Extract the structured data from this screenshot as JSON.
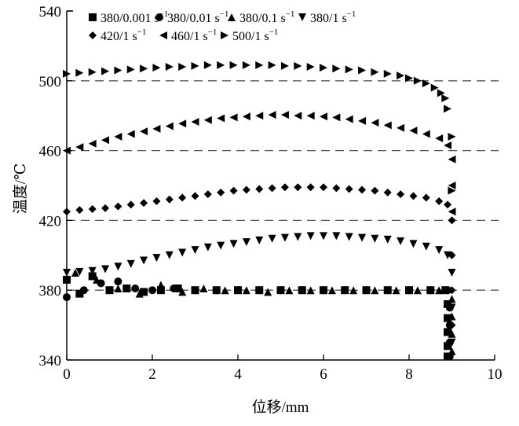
{
  "chart_data": {
    "type": "scatter",
    "title": "",
    "xlabel": "位移/mm",
    "ylabel": "温度/℃",
    "xlim": [
      0,
      10
    ],
    "ylim": [
      340,
      540
    ],
    "xticks": [
      "0",
      "2",
      "4",
      "6",
      "8",
      "10"
    ],
    "yticks": [
      "340",
      "380",
      "420",
      "460",
      "500",
      "540"
    ],
    "grid": "dashed horizontal at 380, 420, 460, 500",
    "legend_placement": "top-left inside",
    "series": [
      {
        "name": "380/0.001 s",
        "sup": "−1",
        "marker": "square",
        "x": [
          0,
          0.3,
          0.6,
          1.0,
          1.4,
          1.8,
          2.2,
          2.6,
          3.0,
          3.5,
          4.0,
          4.5,
          5.0,
          5.5,
          6.0,
          6.5,
          7.0,
          7.5,
          8.0,
          8.5,
          8.85,
          8.9,
          8.9,
          8.9,
          8.9,
          8.9
        ],
        "y": [
          386,
          378,
          388,
          380,
          381,
          379,
          380,
          381,
          380,
          380,
          380,
          380,
          380,
          380,
          380,
          380,
          380,
          380,
          380,
          380,
          380,
          372,
          364,
          356,
          348,
          342
        ]
      },
      {
        "name": "380/0.01 s",
        "sup": "−1",
        "marker": "circle",
        "x": [
          0,
          0.4,
          0.8,
          1.2,
          1.6,
          2.0,
          2.5,
          3.0,
          3.5,
          4.0,
          4.5,
          5.0,
          5.5,
          6.0,
          6.5,
          7.0,
          7.5,
          8.0,
          8.5,
          8.9,
          8.95,
          8.95,
          8.95,
          8.95
        ],
        "y": [
          376,
          380,
          384,
          385,
          381,
          380,
          381,
          380,
          380,
          380,
          380,
          380,
          380,
          380,
          380,
          380,
          380,
          380,
          380,
          380,
          370,
          360,
          350,
          342
        ]
      },
      {
        "name": "380/0.1 s",
        "sup": "−1",
        "marker": "triangle-up",
        "x": [
          0.2,
          0.7,
          1.2,
          1.7,
          2.2,
          2.7,
          3.2,
          3.7,
          4.2,
          4.7,
          5.2,
          5.7,
          6.2,
          6.7,
          7.2,
          7.7,
          8.2,
          8.7,
          9.0,
          9.0,
          9.0,
          9.0
        ],
        "y": [
          390,
          386,
          381,
          378,
          383,
          379,
          381,
          380,
          380,
          379,
          380,
          380,
          380,
          380,
          380,
          380,
          380,
          380,
          375,
          365,
          355,
          345
        ]
      },
      {
        "name": "380/1 s",
        "sup": "−1",
        "marker": "triangle-down",
        "x": [
          0,
          0.3,
          0.6,
          0.9,
          1.2,
          1.5,
          1.8,
          2.1,
          2.4,
          2.7,
          3.0,
          3.3,
          3.6,
          3.9,
          4.2,
          4.5,
          4.8,
          5.1,
          5.4,
          5.7,
          6.0,
          6.3,
          6.6,
          6.9,
          7.2,
          7.5,
          7.8,
          8.1,
          8.4,
          8.7,
          8.9,
          9.0,
          9.0,
          9.0
        ],
        "y": [
          390,
          390.5,
          391,
          392,
          393.5,
          395,
          397,
          398.5,
          400,
          401.5,
          403,
          404.5,
          405.5,
          406.5,
          407.5,
          408.5,
          409.5,
          410,
          410.5,
          411,
          411,
          411,
          410.5,
          410,
          409.5,
          409,
          408,
          406.5,
          405,
          403,
          400,
          390,
          370,
          350
        ]
      },
      {
        "name": "420/1 s",
        "sup": "−1",
        "marker": "diamond",
        "x": [
          0,
          0.3,
          0.6,
          0.9,
          1.2,
          1.5,
          1.8,
          2.1,
          2.4,
          2.7,
          3.0,
          3.3,
          3.6,
          3.9,
          4.2,
          4.5,
          4.8,
          5.1,
          5.4,
          5.7,
          6.0,
          6.3,
          6.6,
          6.9,
          7.2,
          7.5,
          7.8,
          8.1,
          8.4,
          8.7,
          8.9,
          9.0,
          9.0,
          9.0,
          9.0
        ],
        "y": [
          425,
          426,
          426.5,
          427,
          428,
          429,
          430,
          431,
          432,
          433,
          434,
          435,
          436,
          437,
          437.5,
          438,
          438.5,
          439,
          439,
          439,
          439,
          438.5,
          438,
          437.5,
          437,
          436,
          435,
          434,
          433,
          431,
          429,
          420,
          400,
          380,
          360
        ]
      },
      {
        "name": "460/1 s",
        "sup": "−1",
        "marker": "triangle-left",
        "x": [
          0,
          0.3,
          0.6,
          0.9,
          1.2,
          1.5,
          1.8,
          2.1,
          2.4,
          2.7,
          3.0,
          3.3,
          3.6,
          3.9,
          4.2,
          4.5,
          4.8,
          5.1,
          5.4,
          5.7,
          6.0,
          6.3,
          6.6,
          6.9,
          7.2,
          7.5,
          7.8,
          8.1,
          8.4,
          8.7,
          8.9,
          9.0,
          9.0,
          9.0
        ],
        "y": [
          460,
          462,
          464,
          466,
          468,
          469.5,
          471,
          472.5,
          474,
          475.5,
          476.5,
          477.5,
          478.5,
          479,
          479.5,
          480,
          480.5,
          480.5,
          480,
          480,
          479.5,
          479,
          478,
          477,
          476,
          474.5,
          473,
          471.5,
          469.5,
          467,
          463,
          455,
          440,
          425
        ]
      },
      {
        "name": "500/1 s",
        "sup": "−1",
        "marker": "triangle-right",
        "x": [
          0,
          0.3,
          0.6,
          0.9,
          1.2,
          1.5,
          1.8,
          2.1,
          2.4,
          2.7,
          3.0,
          3.3,
          3.6,
          3.9,
          4.2,
          4.5,
          4.8,
          5.1,
          5.4,
          5.7,
          6.0,
          6.3,
          6.6,
          6.9,
          7.2,
          7.5,
          7.8,
          8.0,
          8.2,
          8.4,
          8.6,
          8.75,
          8.85,
          8.9,
          9.0,
          9.0
        ],
        "y": [
          504,
          504.5,
          505,
          505.5,
          506,
          506.5,
          507,
          507.5,
          508,
          508,
          508.5,
          509,
          509,
          509,
          509,
          509,
          509,
          508.5,
          508.5,
          508,
          507.5,
          507,
          506.5,
          506,
          505,
          504,
          503,
          501.5,
          500,
          498.5,
          496,
          493,
          490,
          484,
          468,
          437
        ]
      }
    ]
  }
}
